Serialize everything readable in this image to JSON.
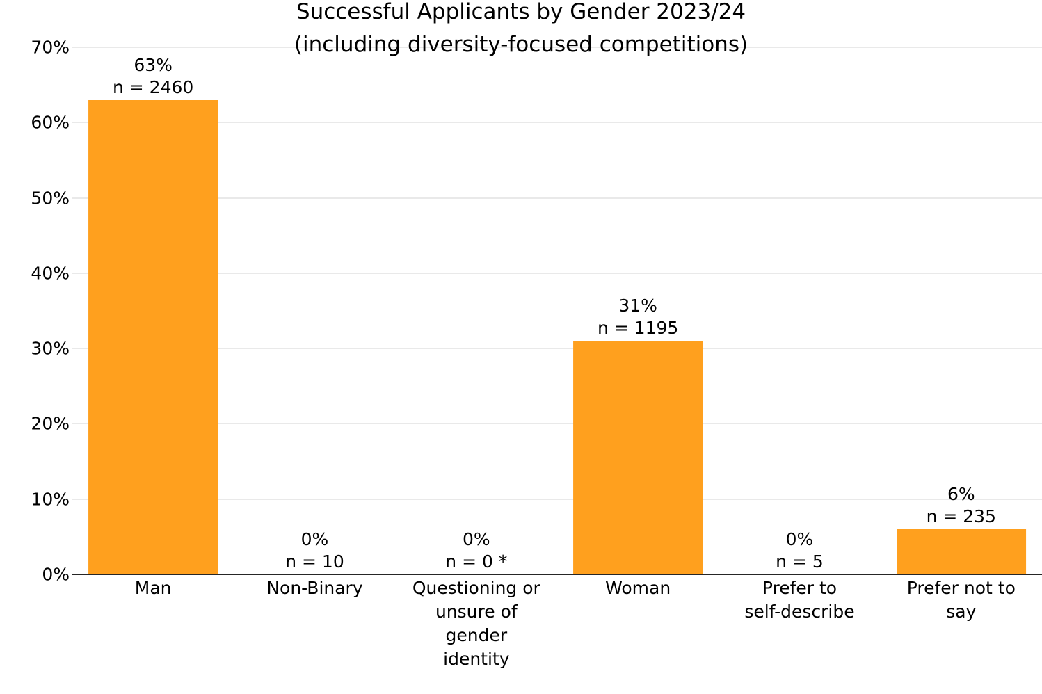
{
  "figure": {
    "title_line1": "Successful Applicants by Gender 2023/24",
    "title_line2": "(including diversity-focused competitions)"
  },
  "colors": {
    "bar": "#FFA01E",
    "gridline": "#e9e9e9",
    "axis_line": "#262626",
    "text": "#000000",
    "background": "#ffffff"
  },
  "chart_data": {
    "type": "bar",
    "title": "Successful Applicants by Gender 2023/24 (including diversity-focused competitions)",
    "categories": [
      "Man",
      "Non-Binary",
      "Questioning or unsure of gender identity",
      "Woman",
      "Prefer to self-describe",
      "Prefer not to say"
    ],
    "values_percent": [
      63,
      0,
      0,
      31,
      0,
      6
    ],
    "counts_n": [
      2460,
      10,
      0,
      1195,
      5,
      235
    ],
    "bar_value_labels": [
      "63%",
      "0%",
      "0%",
      "31%",
      "0%",
      "6%"
    ],
    "bar_n_labels": [
      "n = 2460",
      "n = 10",
      "n = 0 *",
      "n = 1195",
      "n = 5",
      "n = 235"
    ],
    "x_tick_display": [
      "Man",
      "Non-Binary",
      "Questioning or\nunsure of\ngender\nidentity",
      "Woman",
      "Prefer to\nself-describe",
      "Prefer not to\nsay"
    ],
    "y_ticks": [
      "0%",
      "10%",
      "20%",
      "30%",
      "40%",
      "50%",
      "60%",
      "70%"
    ],
    "ylim": [
      0,
      70
    ],
    "ylabel": "",
    "xlabel": "",
    "grid": true,
    "legend": "none",
    "bar_color": "#FFA01E"
  }
}
